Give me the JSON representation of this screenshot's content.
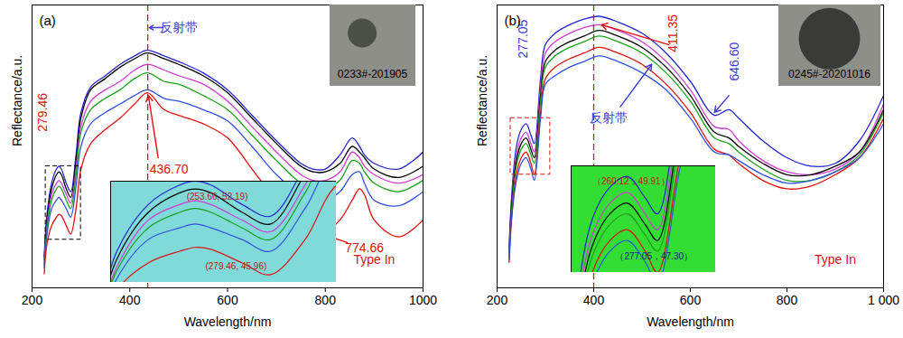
{
  "chart_data": [
    {
      "type": "line",
      "label": "(a)",
      "xlabel": "Wavelength/nm",
      "ylabel": "Reflectance/a.u.",
      "xlim": [
        200,
        1000
      ],
      "xticks": [
        200,
        400,
        600,
        800,
        1000
      ],
      "ylim": [
        0,
        100
      ],
      "tick_labels": "x",
      "x": [
        225,
        230,
        240,
        250,
        255,
        260,
        270,
        279,
        290,
        300,
        320,
        350,
        380,
        410,
        436,
        470,
        500,
        550,
        600,
        650,
        700,
        750,
        775,
        800,
        830,
        855,
        870,
        880,
        900,
        950,
        1000
      ],
      "series": [
        {
          "color": "#2424cc",
          "values": [
            11,
            25,
            37,
            42,
            43,
            42,
            37,
            34,
            47,
            62,
            71,
            75,
            79,
            82,
            84,
            82,
            80,
            76,
            70,
            61,
            52,
            44,
            42,
            42,
            47,
            53,
            50,
            47,
            44,
            42,
            48
          ]
        },
        {
          "color": "#000000",
          "values": [
            10,
            23,
            35,
            40,
            41,
            40,
            35,
            32,
            45,
            60,
            70,
            74,
            78,
            81,
            83,
            81,
            79,
            75,
            69,
            60,
            51,
            43,
            41,
            41,
            44,
            50,
            48,
            46,
            42,
            39,
            43
          ]
        },
        {
          "color": "#d03cd0",
          "values": [
            9,
            21,
            33,
            37,
            38,
            37,
            33,
            30,
            42,
            57,
            66,
            70,
            73,
            77,
            79,
            77,
            75,
            72,
            66,
            57,
            48,
            40,
            38,
            38,
            41,
            48,
            46,
            43,
            40,
            37,
            40
          ]
        },
        {
          "color": "#1aa01a",
          "values": [
            8,
            20,
            31,
            35,
            36,
            35,
            31,
            28,
            40,
            55,
            63,
            67,
            70,
            74,
            76,
            73,
            72,
            68,
            63,
            54,
            45,
            37,
            35,
            35,
            38,
            45,
            44,
            41,
            37,
            34,
            38
          ]
        },
        {
          "color": "#3050e0",
          "values": [
            7,
            18,
            28,
            31,
            32,
            31,
            28,
            25,
            36,
            50,
            58,
            62,
            65,
            68,
            70,
            67,
            66,
            63,
            59,
            50,
            40,
            33,
            31,
            31,
            34,
            40,
            41,
            37,
            31,
            29,
            34
          ]
        },
        {
          "color": "#e01010",
          "values": [
            5,
            15,
            22,
            25,
            26,
            25.5,
            22,
            19,
            28,
            42,
            51,
            56,
            60,
            65,
            69,
            63,
            61,
            58,
            53,
            42,
            31,
            22,
            20,
            20,
            24,
            31,
            35,
            33,
            24,
            18,
            24
          ]
        }
      ],
      "vline": {
        "x": 436.7,
        "color": "#e01010"
      },
      "annotations": [
        {
          "text": "反射带",
          "x": 500,
          "y": 92,
          "color": "#3a3adf",
          "arrow_from": [
            468,
            92
          ],
          "arrow_to": [
            440,
            92
          ]
        },
        {
          "text": "279.46",
          "x": 222,
          "y": 62,
          "color": "#e01010",
          "vertical": true
        },
        {
          "text": "436.70",
          "x": 480,
          "y": 42,
          "color": "#e01010",
          "arrow_from": [
            458,
            46
          ],
          "arrow_to": [
            438,
            68
          ]
        },
        {
          "text": "774.66",
          "x": 880,
          "y": 14,
          "color": "#e01010",
          "arrow_from": [
            845,
            16
          ],
          "arrow_to": [
            776,
            20
          ]
        },
        {
          "text": "Type In",
          "x": 900,
          "y": 10,
          "color": "#e01010"
        }
      ],
      "photo_label": "0233#-201905",
      "inset": {
        "xlim": [
          228,
          300
        ],
        "ylim": [
          17,
          43
        ],
        "background": "#80dada",
        "annotations": [
          {
            "text": "(253.66, 52.19)",
            "x": 262,
            "y": 39,
            "color": "#c01818"
          },
          {
            "text": "(279.46, 45.96)",
            "x": 268,
            "y": 21,
            "color": "#c01818"
          }
        ]
      }
    },
    {
      "type": "line",
      "label": "(b)",
      "xlabel": "Wavelength/nm",
      "ylabel": "Reflectance/a.u.",
      "xlim": [
        200,
        1000
      ],
      "xticks": [
        200,
        400,
        600,
        800,
        {
          "value": 1000,
          "label": "1 000"
        }
      ],
      "ylim": [
        0,
        100
      ],
      "tick_labels": "x",
      "x": [
        225,
        230,
        240,
        250,
        260,
        270,
        277,
        290,
        300,
        320,
        350,
        380,
        411,
        450,
        500,
        550,
        600,
        650,
        680,
        700,
        750,
        800,
        850,
        900,
        950,
        1000
      ],
      "series": [
        {
          "color": "#2424cc",
          "values": [
            14,
            32,
            50,
            56,
            58,
            54,
            51,
            74,
            86,
            90,
            93,
            95,
            96,
            94,
            90,
            83,
            73,
            61,
            63,
            60,
            52,
            46,
            43,
            44,
            52,
            68
          ]
        },
        {
          "color": "#d03cd0",
          "values": [
            13,
            30,
            47,
            53,
            55,
            51,
            48,
            71,
            83,
            87,
            90,
            92,
            93,
            91,
            87,
            80,
            70,
            57,
            56,
            52,
            45,
            41,
            40,
            42,
            48,
            65
          ]
        },
        {
          "color": "#000000",
          "values": [
            12,
            29,
            45,
            51,
            53,
            49,
            46,
            68,
            80,
            84,
            87,
            89,
            91,
            89,
            85,
            78,
            68,
            55,
            53,
            50,
            44,
            40,
            40,
            43,
            48,
            63
          ]
        },
        {
          "color": "#1aa01a",
          "values": [
            11,
            27,
            43,
            49,
            51,
            47,
            44,
            66,
            78,
            82,
            85,
            87,
            89,
            87,
            83,
            76,
            66,
            53,
            51,
            48,
            42,
            38,
            38,
            41,
            47,
            62
          ]
        },
        {
          "color": "#e01010",
          "values": [
            9,
            24,
            40,
            46,
            48,
            44,
            40,
            62,
            74,
            78,
            81,
            83,
            85,
            83,
            79,
            72,
            62,
            49,
            47,
            44,
            38,
            35,
            36,
            40,
            46,
            60
          ]
        },
        {
          "color": "#3050e0",
          "values": [
            10,
            25,
            38,
            44,
            46,
            42,
            38,
            60,
            72,
            75,
            78,
            80,
            82,
            80,
            76,
            70,
            60,
            48,
            47,
            45,
            40,
            37,
            38,
            41,
            46,
            58
          ]
        }
      ],
      "vline": {
        "x": 400,
        "color": "#e01010"
      },
      "annotations": [
        {
          "text": "277.05",
          "x": 255,
          "y": 88,
          "color": "#3a3adf",
          "vertical": true
        },
        {
          "text": "411.35",
          "x": 565,
          "y": 90,
          "color": "#e01010",
          "vertical": true,
          "arrow_from": [
            555,
            86
          ],
          "arrow_to": [
            416,
            93
          ]
        },
        {
          "text": "646.60",
          "x": 692,
          "y": 80,
          "color": "#3a3adf",
          "vertical": true,
          "arrow_from": [
            680,
            68
          ],
          "arrow_to": [
            650,
            62
          ]
        },
        {
          "text": "反射带",
          "x": 430,
          "y": 60,
          "color": "#3a3adf",
          "arrow_from": [
            455,
            64
          ],
          "arrow_to": [
            520,
            79
          ]
        },
        {
          "text": "Type In",
          "x": 900,
          "y": 10,
          "color": "#e01010"
        }
      ],
      "photo_label": "0245#-20201016",
      "inset": {
        "xlim": [
          228,
          310
        ],
        "ylim": [
          40,
          60
        ],
        "background": "#33dd33",
        "annotations": [
          {
            "text": "（260.12，49.91）",
            "x": 262,
            "y": 57,
            "color": "#c01818"
          },
          {
            "text": "（277.05，47.30）",
            "x": 275,
            "y": 43,
            "color": "#1a1a8a"
          }
        ]
      }
    }
  ]
}
